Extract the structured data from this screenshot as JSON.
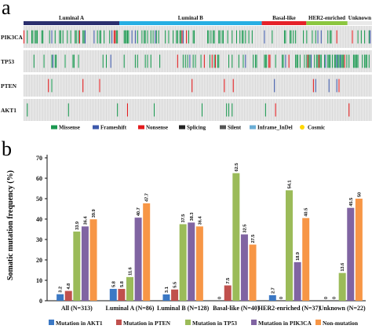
{
  "panel_a": {
    "letter": "a",
    "subtypes": [
      {
        "name": "Luminal A",
        "color": "#2b2f6e",
        "n": 86
      },
      {
        "name": "Luminal B",
        "color": "#27aee3",
        "n": 128
      },
      {
        "name": "Basal-like",
        "color": "#e52129",
        "n": 40
      },
      {
        "name": "HER2-enriched",
        "color": "#8cc63f",
        "n": 37
      },
      {
        "name": "Unknown",
        "color": "#e9e9e9",
        "n": 22
      }
    ],
    "genes": [
      "PIK3CA",
      "TP53",
      "PTEN",
      "AKT1"
    ],
    "mutation_types": [
      {
        "name": "Missense",
        "color": "#1a9850"
      },
      {
        "name": "Frameshift",
        "color": "#3d59ab"
      },
      {
        "name": "Nonsense",
        "color": "#e31a1c"
      },
      {
        "name": "Splicing",
        "color": "#222222"
      },
      {
        "name": "Silent",
        "color": "#555555"
      },
      {
        "name": "Inframe_InDel",
        "color": "#6baed6"
      },
      {
        "name": "Cosmic",
        "color": "#ffd700"
      }
    ],
    "background_color": "#d9d9d9"
  },
  "chart_data": {
    "type": "bar",
    "panel_letter": "b",
    "ylabel": "Somatic  mutation  frequency (%)",
    "ylim": [
      0,
      70
    ],
    "yticks": [
      0,
      10,
      20,
      30,
      40,
      50,
      60,
      70
    ],
    "categories": [
      "All (N=313)",
      "Luminal A (N=86)",
      "Luminal B (N=128)",
      "Basal-like (N=40)",
      "HER2-enriched (N=37)",
      "Unknown (N=22)"
    ],
    "series": [
      {
        "name": "Mutation in AKT1",
        "color": "#3b78c4",
        "values": [
          3.2,
          5.8,
          3.1,
          0,
          2.7,
          0
        ]
      },
      {
        "name": "Mutation in PTEN",
        "color": "#c0504d",
        "values": [
          4.8,
          5.8,
          5.5,
          7.5,
          0,
          0
        ]
      },
      {
        "name": "Mutation in TP53",
        "color": "#9bbb59",
        "values": [
          33.9,
          11.6,
          37.5,
          62.5,
          54.1,
          13.6
        ]
      },
      {
        "name": "Mutation in PIK3CA",
        "color": "#8064a2",
        "values": [
          36.4,
          40.7,
          38.3,
          32.5,
          18.9,
          45.5
        ]
      },
      {
        "name": "Non-mutation",
        "color": "#f79646",
        "values": [
          39.9,
          47.7,
          36.4,
          27.5,
          40.5,
          50
        ]
      }
    ],
    "data_labels": [
      [
        "3.2",
        "4.8",
        "33.9",
        "36.4",
        "39.9"
      ],
      [
        "5.8",
        "5.8",
        "11.6",
        "40.7",
        "47.7"
      ],
      [
        "3.1",
        "5.5",
        "37.5",
        "38.3",
        "36.4"
      ],
      [
        "0",
        "7.5",
        "62.5",
        "32.5",
        "27.5"
      ],
      [
        "2.7",
        "0",
        "54.1",
        "18.9",
        "40.5"
      ],
      [
        "0",
        "0",
        "13.6",
        "45.5",
        "50"
      ]
    ],
    "legend_position": "bottom"
  }
}
